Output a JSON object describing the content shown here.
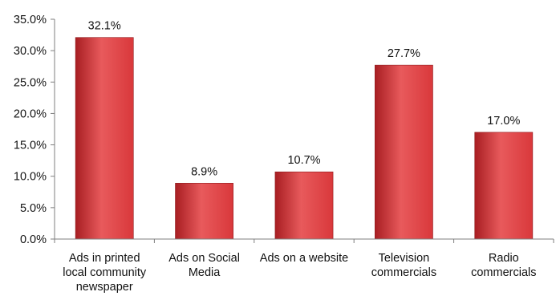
{
  "chart_data": {
    "type": "bar",
    "categories": [
      [
        "Ads in printed",
        "local community",
        "newspaper"
      ],
      [
        "Ads on Social",
        "Media"
      ],
      [
        "Ads on a website"
      ],
      [
        "Television",
        "commercials"
      ],
      [
        "Radio",
        "commercials"
      ]
    ],
    "values": [
      32.1,
      8.9,
      10.7,
      27.7,
      17.0
    ],
    "data_labels": [
      "32.1%",
      "8.9%",
      "10.7%",
      "27.7%",
      "17.0%"
    ],
    "ylim": [
      0,
      35
    ],
    "yticks": [
      0,
      5,
      10,
      15,
      20,
      25,
      30,
      35
    ],
    "ytick_labels": [
      "0.0%",
      "5.0%",
      "10.0%",
      "15.0%",
      "20.0%",
      "25.0%",
      "30.0%",
      "35.0%"
    ],
    "title": "",
    "xlabel": "",
    "ylabel": "",
    "grid": false,
    "legend": false,
    "bar_color": "#d9383b",
    "bar_color_light": "#e85a5c",
    "bar_color_dark": "#a81e22"
  }
}
